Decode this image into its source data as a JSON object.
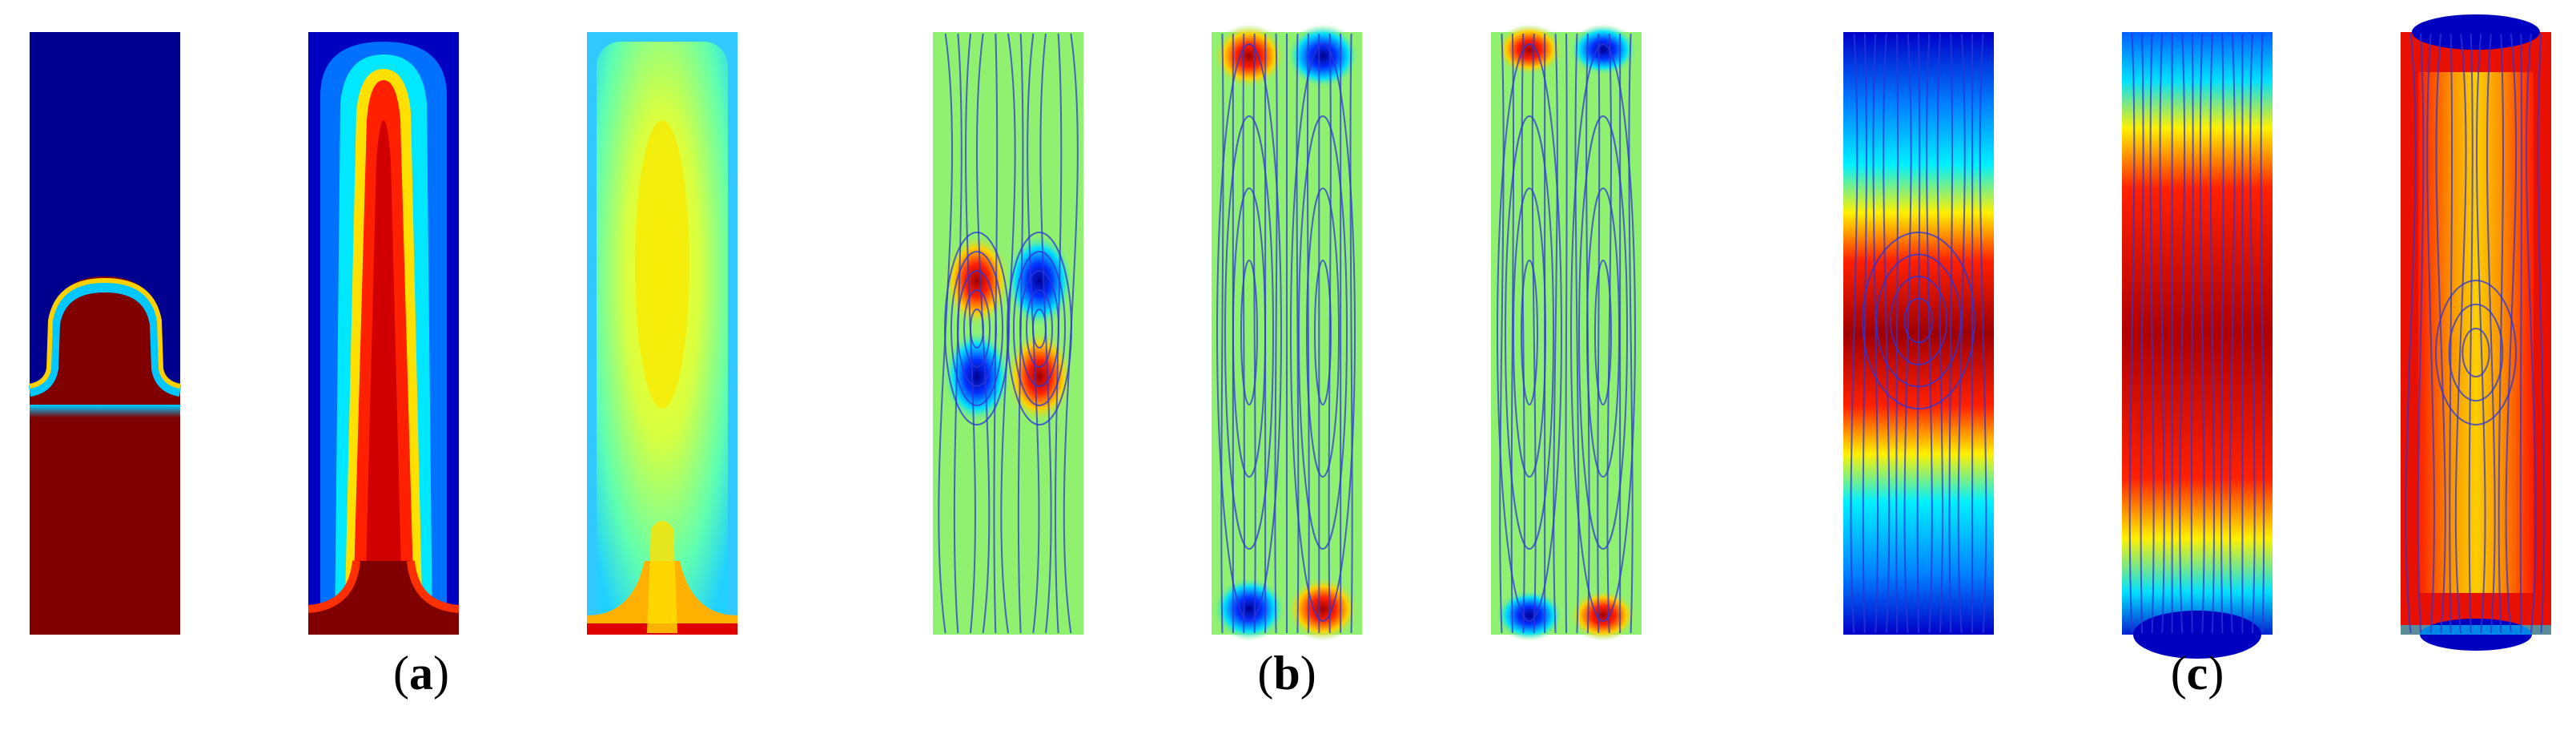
{
  "figure": {
    "groups": [
      {
        "id": "a",
        "caption_letter": "a",
        "panels": [
          {
            "kind": "interface-bump",
            "overlay": "none"
          },
          {
            "kind": "rising-column",
            "overlay": "none"
          },
          {
            "kind": "diffuse-column",
            "overlay": "none"
          }
        ]
      },
      {
        "id": "b",
        "caption_letter": "b",
        "panels": [
          {
            "kind": "vortex-quad",
            "overlay": "streamlines"
          },
          {
            "kind": "corner-vortices",
            "overlay": "streamlines"
          },
          {
            "kind": "corner-vortices-weak",
            "overlay": "streamlines"
          }
        ]
      },
      {
        "id": "c",
        "caption_letter": "c",
        "panels": [
          {
            "kind": "center-band",
            "overlay": "streamlines"
          },
          {
            "kind": "center-band-wide",
            "overlay": "streamlines"
          },
          {
            "kind": "hot-field",
            "overlay": "streamlines"
          }
        ]
      }
    ],
    "colormap": [
      "#00008F",
      "#0000FF",
      "#00FFFF",
      "#FFFF00",
      "#FF0000",
      "#800000"
    ],
    "streamline_color": "#2B35D8",
    "background_color": "#90F070"
  }
}
